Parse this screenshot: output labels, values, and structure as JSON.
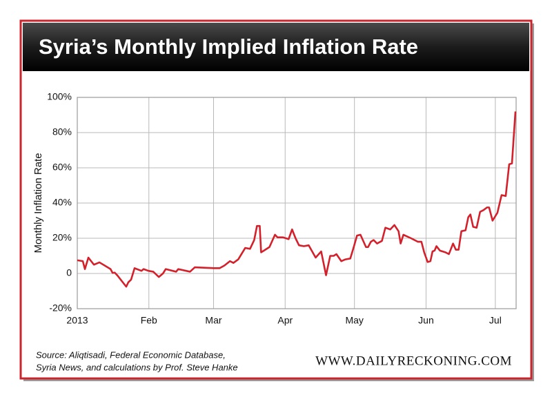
{
  "chart_data": {
    "type": "line",
    "title": "Syria’s Monthly Implied Inflation Rate",
    "ylabel": "Monthly Inflation Rate",
    "source": [
      "Source: Aliqtisadi, Federal Economic Database,",
      "Syria News, and calculations by Prof. Steve Hanke"
    ],
    "site": "WWW.DAILYRECKONING.COM",
    "xlim": [
      0,
      190
    ],
    "xticks": [
      {
        "value": 0,
        "label": "2013"
      },
      {
        "value": 31,
        "label": "Feb"
      },
      {
        "value": 59,
        "label": "Mar"
      },
      {
        "value": 90,
        "label": "Apr"
      },
      {
        "value": 120,
        "label": "May"
      },
      {
        "value": 151,
        "label": "Jun"
      },
      {
        "value": 181,
        "label": "Jul"
      }
    ],
    "ylim": [
      -20,
      100
    ],
    "yticks": [
      {
        "value": -20,
        "label": "-20%"
      },
      0,
      {
        "value": 20,
        "label": "20%"
      },
      {
        "value": 40,
        "label": "40%"
      },
      {
        "value": 60,
        "label": "60%"
      },
      {
        "value": 80,
        "label": "80%"
      },
      {
        "value": 100,
        "label": "100%"
      }
    ],
    "grid": true,
    "series": [
      {
        "color": "#d4202a",
        "x": [
          0,
          2.4,
          3.3,
          4.8,
          7.2,
          9.6,
          14.4,
          15.3,
          16.2,
          17.3,
          21.2,
          22.1,
          23.3,
          24.8,
          27.8,
          28.7,
          30.8,
          32.9,
          35.3,
          37.1,
          38.3,
          42.8,
          43.7,
          48.8,
          50.9,
          59.2,
          61.6,
          63.7,
          66.1,
          67.6,
          69.7,
          72.7,
          74.8,
          76.6,
          77.8,
          79,
          79.6,
          83.2,
          85.6,
          86.7,
          89.1,
          91.5,
          93,
          94.5,
          96,
          98.1,
          100.2,
          103.2,
          105.6,
          107.7,
          109.5,
          111,
          112.2,
          114.3,
          116.1,
          118.2,
          119.7,
          121.1,
          122.6,
          125,
          125.9,
          127.1,
          128.3,
          129.8,
          131.9,
          133.4,
          135.5,
          137.3,
          139.1,
          140,
          141.2,
          144.5,
          147.5,
          149,
          150.2,
          151.7,
          152.9,
          153.8,
          154.7,
          155.5,
          157,
          159.4,
          160.9,
          162.7,
          163.9,
          165.1,
          166.3,
          168.1,
          169.3,
          170.2,
          171.4,
          172.9,
          174.4,
          175.9,
          177.4,
          178.3,
          179.8,
          181.9,
          183.7,
          185.5,
          187,
          188.2,
          189.7
        ],
        "values": [
          7.5,
          7,
          2.5,
          9,
          5,
          6.3,
          2.5,
          0.3,
          0.5,
          -1,
          -7.5,
          -5,
          -3.5,
          3,
          1.5,
          2.5,
          1.5,
          1,
          -2,
          0,
          2.5,
          1,
          2.5,
          1,
          3.5,
          3,
          3,
          4.5,
          7,
          6,
          8,
          14.5,
          14,
          19,
          27,
          27,
          12,
          15,
          22,
          20.5,
          20.5,
          19.5,
          25,
          20,
          16,
          15.5,
          16,
          9,
          12.5,
          -1,
          10,
          10,
          11,
          7,
          8,
          8.5,
          15,
          21.5,
          22,
          15,
          15,
          18,
          19,
          17,
          18.5,
          26,
          25,
          27.5,
          24,
          17,
          22,
          20,
          18,
          18,
          12,
          6.5,
          7,
          12.5,
          13,
          15.5,
          13,
          12,
          11,
          17,
          13.5,
          13.5,
          24,
          24.5,
          32,
          33.5,
          26.5,
          26,
          35,
          36,
          37.5,
          37.5,
          30,
          34.5,
          44.5,
          44,
          62,
          62.5,
          92
        ]
      }
    ]
  }
}
